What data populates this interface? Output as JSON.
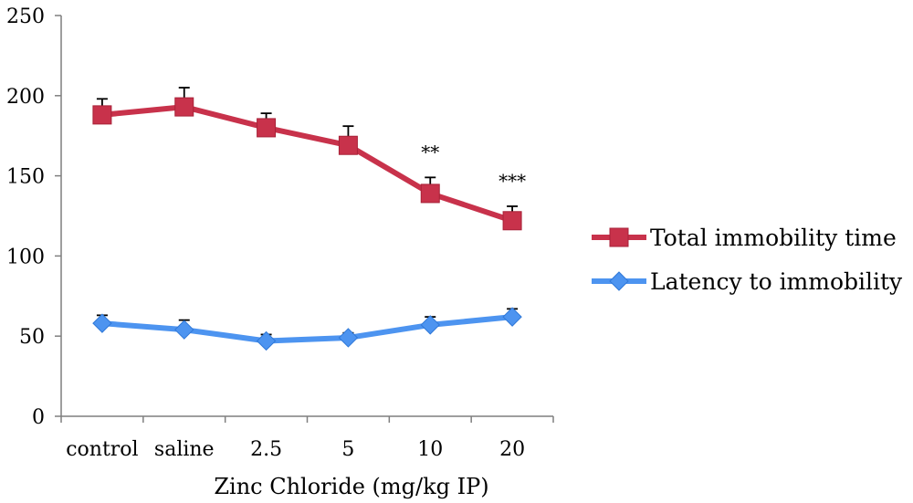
{
  "chart_data": {
    "type": "line",
    "title": "",
    "xlabel": "Zinc Chloride (mg/kg  IP)",
    "ylabel": "",
    "categories": [
      "control",
      "saline",
      "2.5",
      "5",
      "10",
      "20"
    ],
    "ylim": [
      0,
      250
    ],
    "yticks": [
      0,
      50,
      100,
      150,
      200,
      250
    ],
    "grid": false,
    "legend_position": "right",
    "series": [
      {
        "name": "Total immobility time",
        "color": "#c8324b",
        "marker": "square",
        "values": [
          188,
          193,
          180,
          169,
          139,
          122
        ],
        "error": [
          10,
          12,
          9,
          12,
          10,
          9
        ]
      },
      {
        "name": "Latency to immobility",
        "color": "#4d94f0",
        "marker": "diamond",
        "values": [
          58,
          54,
          47,
          49,
          57,
          62
        ],
        "error": [
          5,
          6,
          4,
          3,
          5,
          5
        ]
      }
    ],
    "annotations": [
      {
        "category": "10",
        "series": "Total immobility time",
        "text": "**"
      },
      {
        "category": "20",
        "series": "Total immobility time",
        "text": "***"
      }
    ]
  }
}
